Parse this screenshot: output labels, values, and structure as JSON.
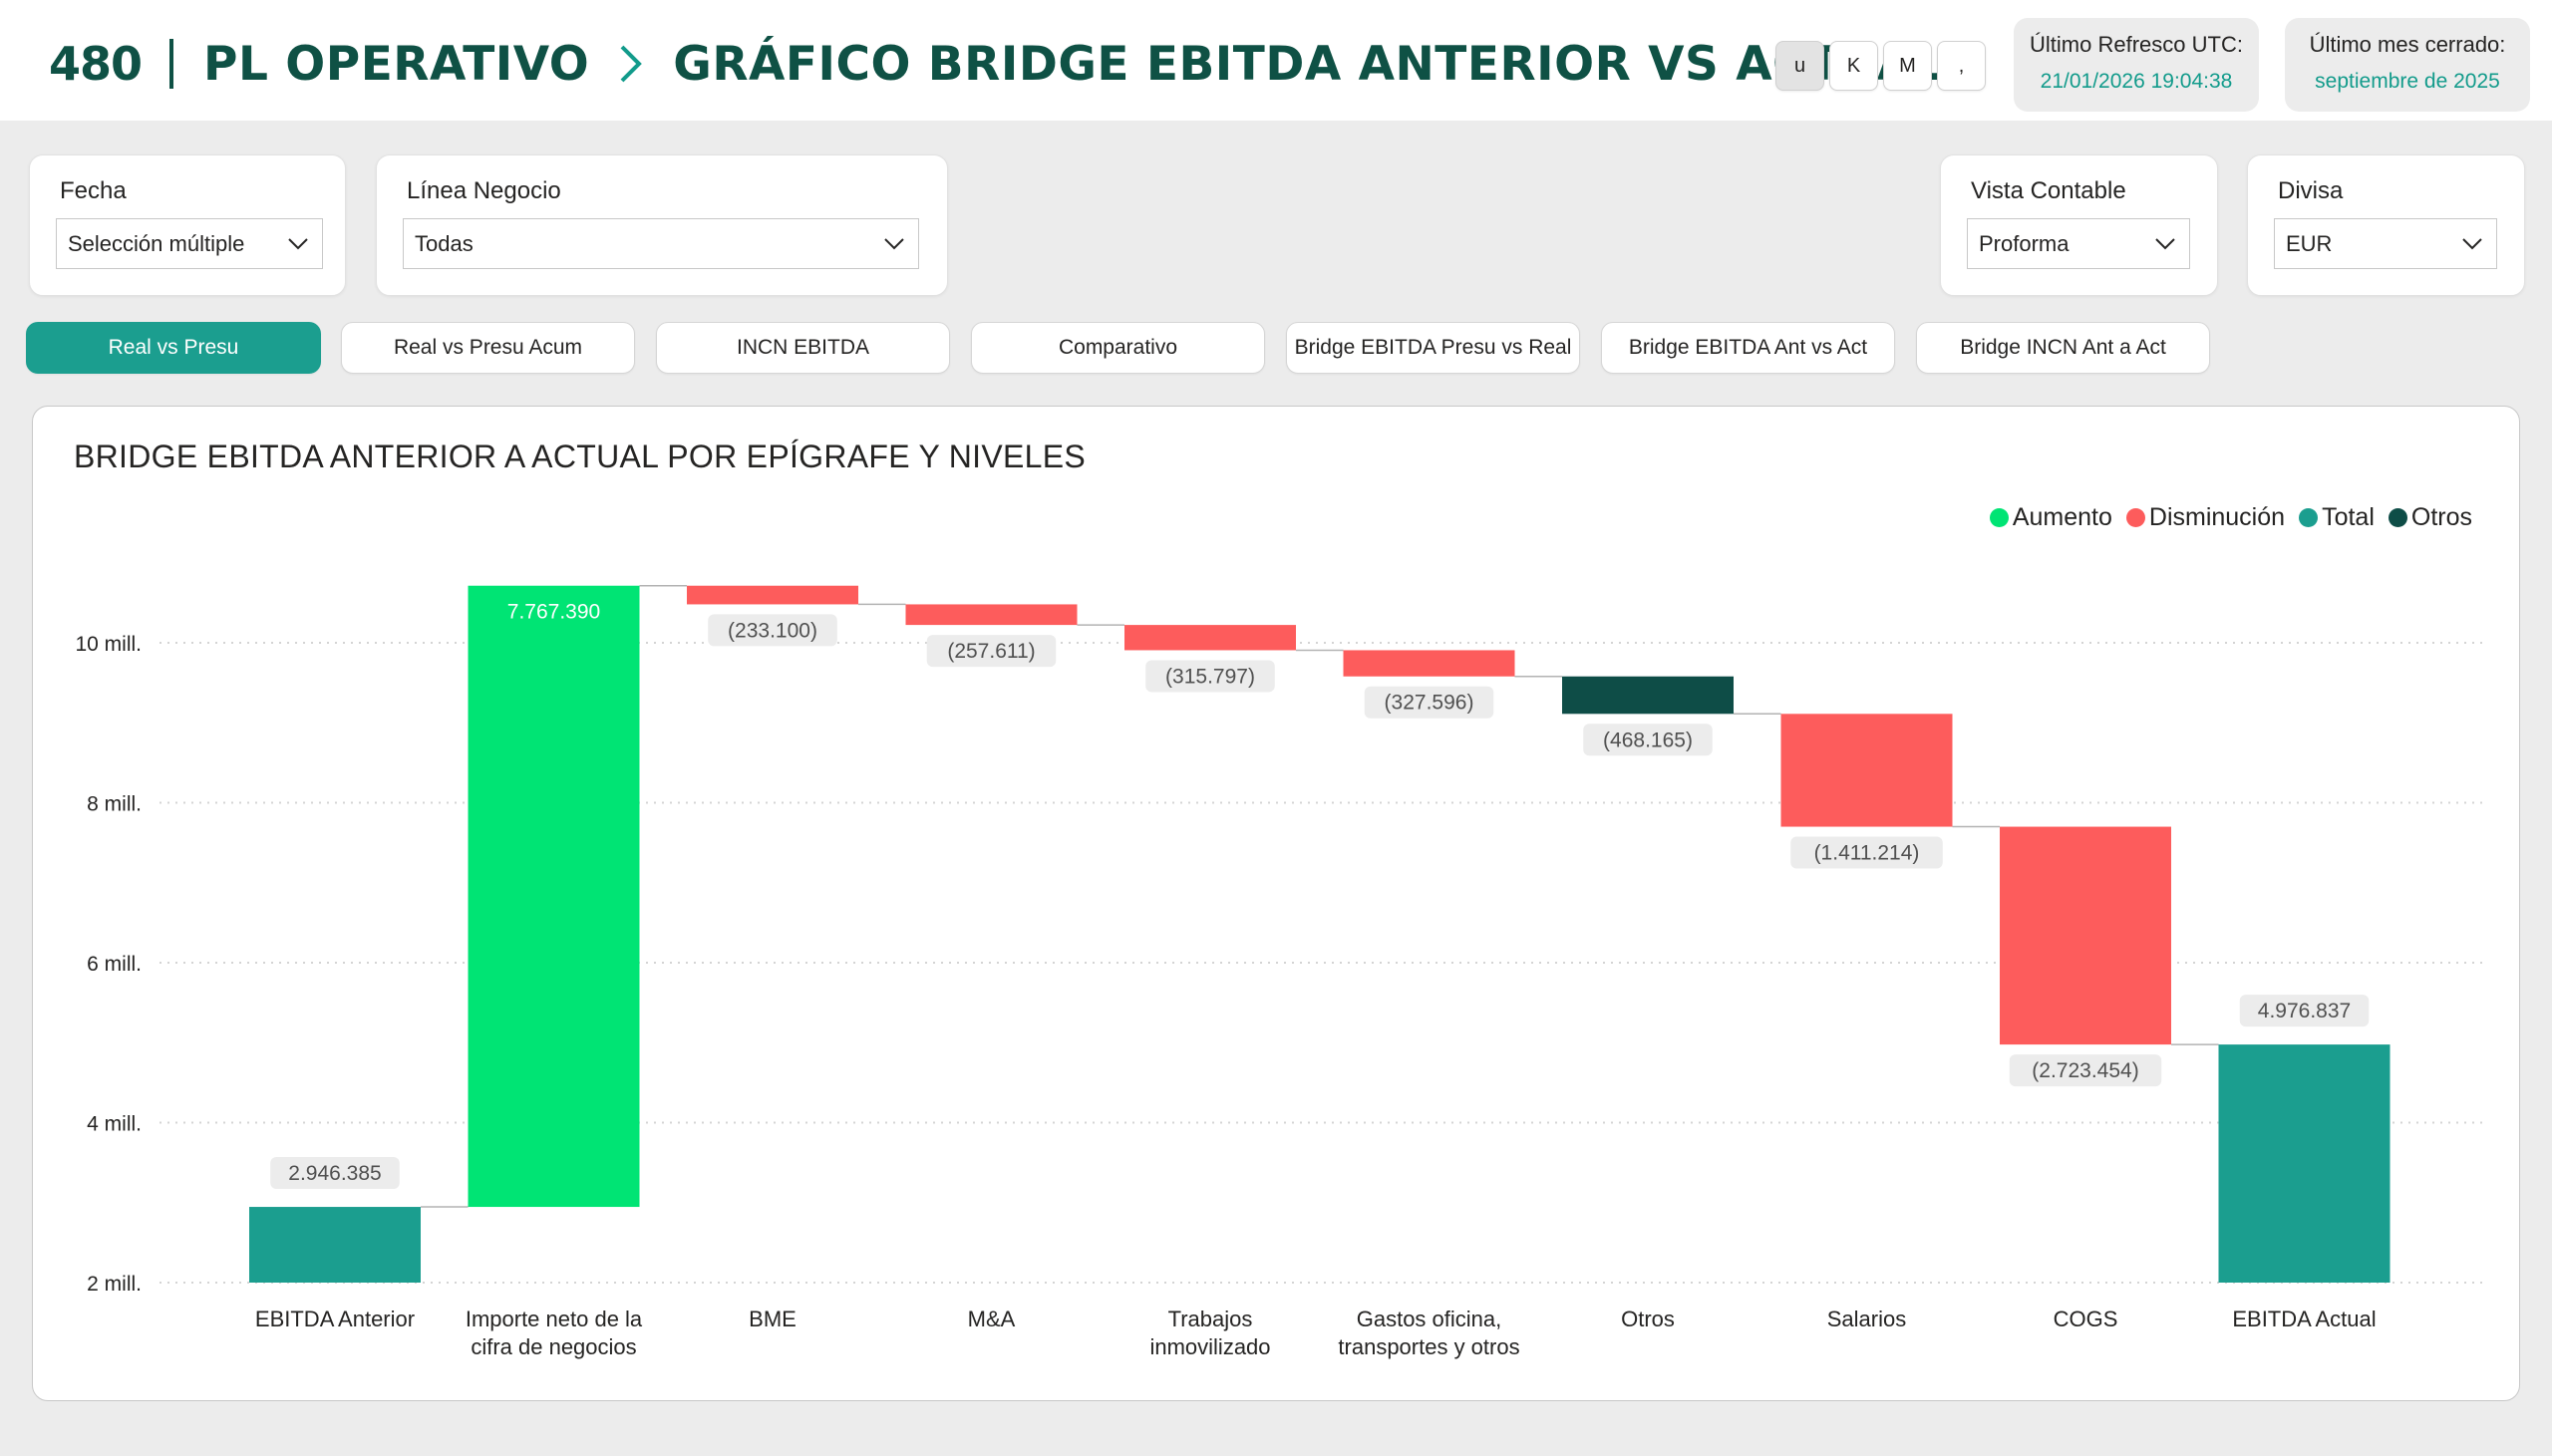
{
  "header": {
    "logo": "480",
    "section_title": "PL OPERATIVO",
    "page_title": "GRÁFICO BRIDGE EBITDA ANTERIOR VS ACTUAL",
    "units": [
      {
        "label": "u",
        "active": true
      },
      {
        "label": "K",
        "active": false
      },
      {
        "label": "M",
        "active": false
      },
      {
        "label": ",",
        "active": false
      }
    ],
    "refresh_label": "Último Refresco UTC:",
    "refresh_value": "21/01/2026 19:04:38",
    "closed_month_label": "Último mes cerrado:",
    "closed_month_value": "septiembre de 2025"
  },
  "filters": {
    "fecha": {
      "label": "Fecha",
      "value": "Selección múltiple"
    },
    "linea": {
      "label": "Línea Negocio",
      "value": "Todas"
    },
    "vista": {
      "label": "Vista Contable",
      "value": "Proforma"
    },
    "divisa": {
      "label": "Divisa",
      "value": "EUR"
    }
  },
  "tabs": [
    {
      "label": "Real vs Presu",
      "active": true
    },
    {
      "label": "Real vs Presu Acum",
      "active": false
    },
    {
      "label": "INCN EBITDA",
      "active": false
    },
    {
      "label": "Comparativo",
      "active": false
    },
    {
      "label": "Bridge EBITDA Presu vs Real",
      "active": false
    },
    {
      "label": "Bridge EBITDA Ant vs Act",
      "active": false
    },
    {
      "label": "Bridge INCN Ant a Act",
      "active": false
    }
  ],
  "colors": {
    "aumento": "#00e474",
    "disminucion": "#fd5c5c",
    "total": "#1b9e8f",
    "otros": "#0e4d47",
    "brand": "#0f5145",
    "accent": "#129b8b"
  },
  "chart_data": {
    "type": "waterfall",
    "title": "BRIDGE EBITDA ANTERIOR A ACTUAL POR EPÍGRAFE Y NIVELES",
    "legend": [
      {
        "name": "Aumento",
        "color": "#00e474"
      },
      {
        "name": "Disminución",
        "color": "#fd5c5c"
      },
      {
        "name": "Total",
        "color": "#1b9e8f"
      },
      {
        "name": "Otros",
        "color": "#0e4d47"
      }
    ],
    "legend_position": "top-right",
    "y_ticks": [
      {
        "value": 2000000,
        "label": "2 mill."
      },
      {
        "value": 4000000,
        "label": "4 mill."
      },
      {
        "value": 6000000,
        "label": "6 mill."
      },
      {
        "value": 8000000,
        "label": "8 mill."
      },
      {
        "value": 10000000,
        "label": "10 mill."
      }
    ],
    "ylim": [
      2000000,
      10800000
    ],
    "grid": true,
    "steps": [
      {
        "category": [
          "EBITDA Anterior"
        ],
        "start": 2000000,
        "end": 2946385,
        "kind": "total",
        "label": "2.946.385"
      },
      {
        "category": [
          "Importe neto de la",
          "cifra de negocios"
        ],
        "start": 2946385,
        "end": 10713775,
        "kind": "aumento",
        "label": "7.767.390"
      },
      {
        "category": [
          "BME"
        ],
        "start": 10713775,
        "end": 10480675,
        "kind": "disminucion",
        "label": "(233.100)"
      },
      {
        "category": [
          "M&A"
        ],
        "start": 10480675,
        "end": 10223064,
        "kind": "disminucion",
        "label": "(257.611)"
      },
      {
        "category": [
          "Trabajos",
          "inmovilizado"
        ],
        "start": 10223064,
        "end": 9907267,
        "kind": "disminucion",
        "label": "(315.797)"
      },
      {
        "category": [
          "Gastos oficina,",
          "transportes y otros"
        ],
        "start": 9907267,
        "end": 9579671,
        "kind": "disminucion",
        "label": "(327.596)"
      },
      {
        "category": [
          "Otros"
        ],
        "start": 9579671,
        "end": 9111506,
        "kind": "otros",
        "label": "(468.165)"
      },
      {
        "category": [
          "Salarios"
        ],
        "start": 9111506,
        "end": 7700292,
        "kind": "disminucion",
        "label": "(1.411.214)"
      },
      {
        "category": [
          "COGS"
        ],
        "start": 7700292,
        "end": 4976838,
        "kind": "disminucion",
        "label": "(2.723.454)"
      },
      {
        "category": [
          "EBITDA Actual"
        ],
        "start": 2000000,
        "end": 4976837,
        "kind": "total",
        "label": "4.976.837"
      }
    ]
  }
}
